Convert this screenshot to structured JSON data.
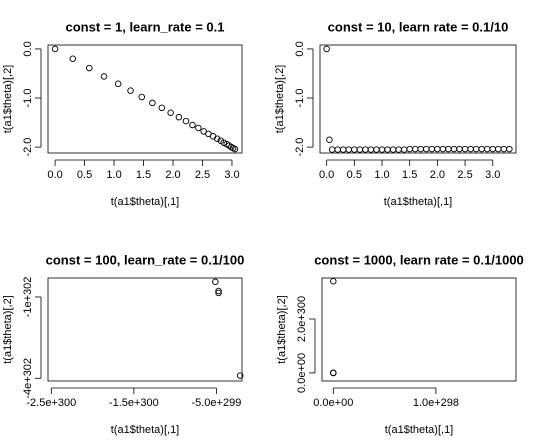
{
  "chart_data": [
    {
      "type": "scatter",
      "title": "const = 1, learn_rate = 0.1",
      "x_label": "t(a1$theta)[,1]",
      "y_label": "t(a1$theta)[,2]",
      "x": [
        0,
        0.3,
        0.58,
        0.83,
        1.07,
        1.28,
        1.47,
        1.65,
        1.81,
        1.96,
        2.1,
        2.22,
        2.33,
        2.43,
        2.52,
        2.6,
        2.68,
        2.75,
        2.81,
        2.86,
        2.91,
        2.95,
        2.99,
        3.02,
        3.05
      ],
      "values": [
        0,
        -0.2,
        -0.39,
        -0.56,
        -0.71,
        -0.85,
        -0.98,
        -1.1,
        -1.2,
        -1.3,
        -1.39,
        -1.47,
        -1.55,
        -1.61,
        -1.68,
        -1.73,
        -1.78,
        -1.83,
        -1.87,
        -1.91,
        -1.94,
        -1.97,
        -2.0,
        -2.02,
        -2.04
      ],
      "xlim": [
        -0.12,
        3.17
      ],
      "ylim": [
        -2.12,
        0.08
      ],
      "xticks": [
        {
          "value": 0,
          "label": "0.0"
        },
        {
          "value": 0.5,
          "label": "0.5"
        },
        {
          "value": 1,
          "label": "1.0"
        },
        {
          "value": 1.5,
          "label": "1.5"
        },
        {
          "value": 2,
          "label": "2.0"
        },
        {
          "value": 2.5,
          "label": "2.5"
        },
        {
          "value": 3,
          "label": "3.0"
        }
      ],
      "yticks": [
        {
          "value": 0,
          "label": "0.0"
        },
        {
          "value": -1,
          "label": "-1.0"
        },
        {
          "value": -2,
          "label": "-2.0"
        }
      ]
    },
    {
      "type": "scatter",
      "title": "const = 10, learn rate = 0.1/10",
      "x_label": "t(a1$theta)[,1]",
      "y_label": "t(a1$theta)[,2]",
      "x": [
        0,
        0.05,
        0.1,
        0.2,
        0.3,
        0.4,
        0.5,
        0.6,
        0.7,
        0.8,
        0.9,
        1.0,
        1.1,
        1.2,
        1.3,
        1.4,
        1.5,
        1.6,
        1.7,
        1.8,
        1.9,
        2.0,
        2.1,
        2.2,
        2.3,
        2.4,
        2.5,
        2.6,
        2.7,
        2.8,
        2.9,
        3.0,
        3.1,
        3.2,
        3.3
      ],
      "values": [
        0,
        -1.85,
        -2.05,
        -2.05,
        -2.05,
        -2.05,
        -2.05,
        -2.05,
        -2.05,
        -2.05,
        -2.05,
        -2.05,
        -2.05,
        -2.05,
        -2.05,
        -2.05,
        -2.04,
        -2.04,
        -2.04,
        -2.04,
        -2.04,
        -2.04,
        -2.04,
        -2.04,
        -2.04,
        -2.04,
        -2.04,
        -2.04,
        -2.04,
        -2.04,
        -2.04,
        -2.04,
        -2.04,
        -2.04,
        -2.04
      ],
      "xlim": [
        -0.12,
        3.42
      ],
      "ylim": [
        -2.12,
        0.08
      ],
      "xticks": [
        {
          "value": 0,
          "label": "0.0"
        },
        {
          "value": 0.5,
          "label": "0.5"
        },
        {
          "value": 1,
          "label": "1.0"
        },
        {
          "value": 1.5,
          "label": "1.5"
        },
        {
          "value": 2,
          "label": "2.0"
        },
        {
          "value": 2.5,
          "label": "2.5"
        },
        {
          "value": 3,
          "label": "3.0"
        }
      ],
      "yticks": [
        {
          "value": 0,
          "label": "0.0"
        },
        {
          "value": -1,
          "label": "-1.0"
        },
        {
          "value": -2,
          "label": "-2.0"
        }
      ]
    },
    {
      "type": "scatter",
      "title": "const = 100, learn_rate = 0.1/100",
      "x_label": "t(a1$theta)[,1]",
      "y_label": "t(a1$theta)[,2]",
      "x": [
        -5.13e+299,
        -4.74e+299,
        -4.74e+299,
        -2.12e+299
      ],
      "values": [
        -4.4e+301,
        -7.8e+301,
        -8.5e+301,
        -3.9e+302
      ],
      "xlim": [
        -2.54e+300,
        -1.9e+299
      ],
      "ylim": [
        -4.1e+302,
        -3e+301
      ],
      "xticks": [
        {
          "value": -2.5e+300,
          "label": "-2.5e+300"
        },
        {
          "value": -1.5e+300,
          "label": "-1.5e+300"
        },
        {
          "value": -5e+299,
          "label": "-5.0e+299"
        }
      ],
      "yticks": [
        {
          "value": -1e+302,
          "label": "-1e+302"
        },
        {
          "value": -4e+302,
          "label": "-4e+302"
        }
      ]
    },
    {
      "type": "scatter",
      "title": "const = 1000, learn rate = 0.1/1000",
      "x_label": "t(a1$theta)[,1]",
      "y_label": "t(a1$theta)[,2]",
      "x": [
        0,
        0,
        0,
        0
      ],
      "values": [
        3.4e+300,
        0,
        0,
        0
      ],
      "xlim": [
        -1.1e+297,
        1.78e+298
      ],
      "ylim": [
        -3e+299,
        3.52e+300
      ],
      "xticks": [
        {
          "value": 0,
          "label": "0.0e+00"
        },
        {
          "value": 1e+298,
          "label": "1.0e+298"
        }
      ],
      "yticks": [
        {
          "value": 0,
          "label": "0.0e+00"
        },
        {
          "value": 2e+300,
          "label": "2.0e+300"
        }
      ]
    }
  ]
}
